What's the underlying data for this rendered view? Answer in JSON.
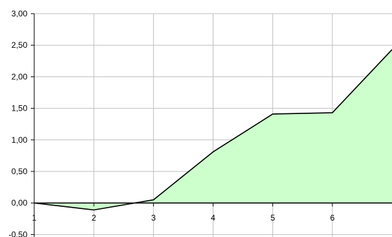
{
  "chart_data": {
    "type": "area",
    "title": "",
    "xlabel": "",
    "ylabel": "",
    "x": [
      1,
      2,
      3,
      4,
      5,
      6,
      7
    ],
    "x_tick_labels": [
      "1",
      "2",
      "3",
      "4",
      "5",
      "6"
    ],
    "series": [
      {
        "values": [
          0.0,
          -0.11,
          0.05,
          0.81,
          1.41,
          1.43,
          2.43
        ]
      }
    ],
    "y_tick_labels": [
      "3,00",
      "2,50",
      "2,00",
      "1,50",
      "1,00",
      "0,50",
      "0,00",
      "-0,50"
    ],
    "ylim": [
      -0.5,
      3.0
    ],
    "xlim": [
      1,
      7
    ],
    "grid": true,
    "legend": "none",
    "colors": {
      "fill": "#ccffcc",
      "line": "#000000",
      "grid": "#bfbfbf",
      "axis": "#000000"
    }
  }
}
